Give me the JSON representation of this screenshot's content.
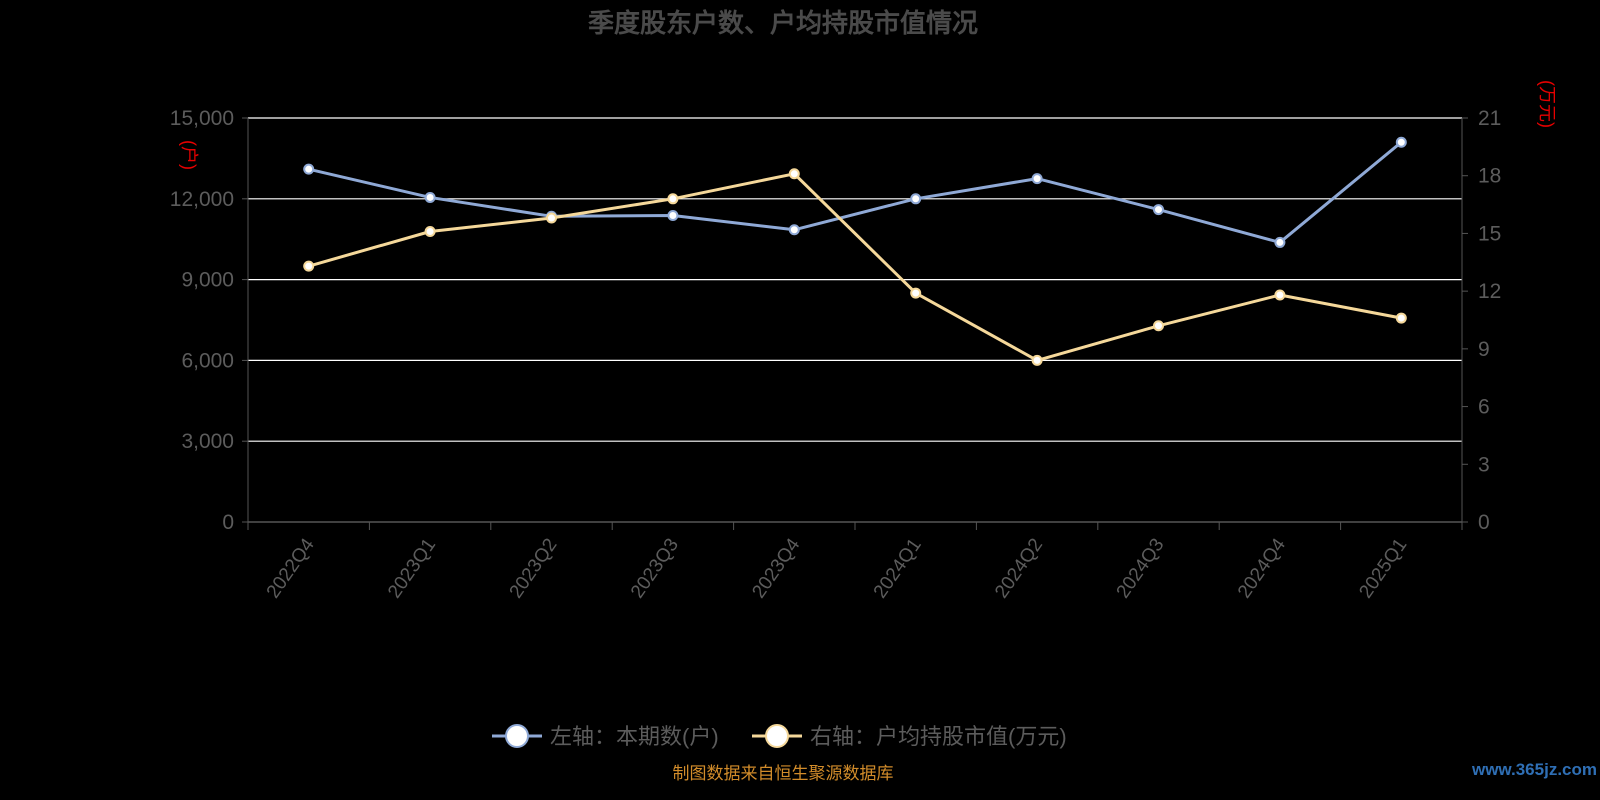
{
  "title": "季度股东户数、户均持股市值情况",
  "left_unit": "(户)",
  "right_unit": "(万元)",
  "source_note": "制图数据来自恒生聚源数据库",
  "watermark": "www.365jz.com",
  "colors": {
    "background": "#000000",
    "holders_line": "#8fa9d6",
    "value_line": "#f5d89a",
    "grid": "#ffffff",
    "unit_text": "#e60000",
    "source_text": "#d28c2a"
  },
  "chart_data": {
    "type": "line",
    "categories": [
      "2022Q4",
      "2023Q1",
      "2023Q2",
      "2023Q3",
      "2023Q4",
      "2024Q1",
      "2024Q2",
      "2024Q3",
      "2024Q4",
      "2025Q1"
    ],
    "y_left": {
      "min": 0,
      "max": 15000,
      "ticks": [
        0,
        3000,
        6000,
        9000,
        12000,
        15000
      ],
      "tick_labels": [
        "0",
        "3,000",
        "6,000",
        "9,000",
        "12,000",
        "15,000"
      ]
    },
    "y_right": {
      "min": 0,
      "max": 21,
      "ticks": [
        0,
        3,
        6,
        9,
        12,
        15,
        18,
        21
      ],
      "tick_labels": [
        "0",
        "3",
        "6",
        "9",
        "12",
        "15",
        "18",
        "21"
      ]
    },
    "grid": true,
    "legend_position": "bottom",
    "series": [
      {
        "name": "左轴：本期数(户)",
        "axis": "left",
        "values": [
          13100,
          12050,
          11350,
          11380,
          10850,
          12000,
          12750,
          11600,
          10380,
          14100
        ]
      },
      {
        "name": "右轴：户均持股市值(万元)",
        "axis": "right",
        "values": [
          13.3,
          15.1,
          15.8,
          16.8,
          18.1,
          11.9,
          8.4,
          10.2,
          11.8,
          10.6
        ]
      }
    ]
  }
}
